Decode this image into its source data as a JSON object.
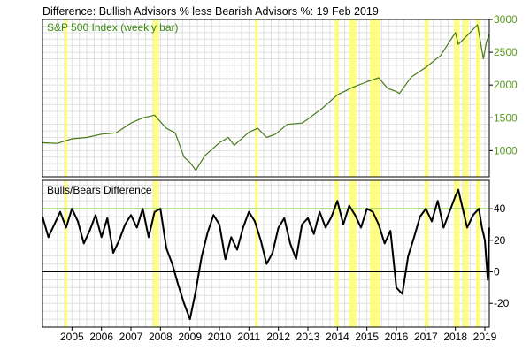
{
  "title": "Difference: Bullish Advisors % less Bearish Advisors %: 19 Feb 2019",
  "colors": {
    "background": "#ffffff",
    "grid": "#e0e0e0",
    "frame": "#000000",
    "price_line": "#4a7a1a",
    "price_label": "#3a8a10",
    "right_axis_price": "#5a9a20",
    "highlight": "#ffff66",
    "threshold_line": "#99cc55",
    "diff_line": "#000000"
  },
  "chart_data": [
    {
      "type": "line",
      "label": "S&P 500 Index (weekly bar)",
      "ylim": [
        600,
        3000
      ],
      "y_ticks": [
        1000,
        1500,
        2000,
        2500,
        3000
      ],
      "y_axis_side": "right",
      "xlim": [
        2004.0,
        2019.15
      ],
      "x": [
        2004.0,
        2004.5,
        2005.0,
        2005.5,
        2006.0,
        2006.5,
        2007.0,
        2007.4,
        2007.8,
        2008.2,
        2008.5,
        2008.8,
        2009.0,
        2009.2,
        2009.5,
        2010.0,
        2010.3,
        2010.5,
        2011.0,
        2011.3,
        2011.6,
        2011.9,
        2012.3,
        2012.8,
        2013.0,
        2013.5,
        2014.0,
        2014.5,
        2015.0,
        2015.4,
        2015.7,
        2016.0,
        2016.1,
        2016.5,
        2017.0,
        2017.5,
        2018.0,
        2018.1,
        2018.5,
        2018.75,
        2018.95,
        2019.05,
        2019.15
      ],
      "y": [
        1120,
        1110,
        1180,
        1200,
        1250,
        1270,
        1420,
        1500,
        1540,
        1340,
        1270,
        900,
        820,
        700,
        920,
        1120,
        1200,
        1080,
        1280,
        1340,
        1200,
        1250,
        1400,
        1420,
        1480,
        1650,
        1850,
        1960,
        2050,
        2110,
        1950,
        1900,
        1870,
        2120,
        2270,
        2450,
        2800,
        2620,
        2800,
        2920,
        2400,
        2650,
        2780
      ]
    },
    {
      "type": "line",
      "label": "Bulls/Bears Difference",
      "ylim": [
        -35,
        58
      ],
      "y_ticks": [
        -20,
        0,
        20,
        40
      ],
      "y_axis_side": "right",
      "threshold": 40,
      "zero_line": 0,
      "xlim": [
        2004.0,
        2019.15
      ],
      "x": [
        2004.0,
        2004.2,
        2004.4,
        2004.6,
        2004.8,
        2005.0,
        2005.2,
        2005.4,
        2005.6,
        2005.8,
        2006.0,
        2006.2,
        2006.4,
        2006.6,
        2006.8,
        2007.0,
        2007.2,
        2007.4,
        2007.6,
        2007.8,
        2008.0,
        2008.2,
        2008.4,
        2008.6,
        2008.8,
        2009.0,
        2009.2,
        2009.4,
        2009.6,
        2009.8,
        2010.0,
        2010.2,
        2010.4,
        2010.6,
        2010.8,
        2011.0,
        2011.2,
        2011.4,
        2011.6,
        2011.8,
        2012.0,
        2012.2,
        2012.4,
        2012.6,
        2012.8,
        2013.0,
        2013.2,
        2013.4,
        2013.6,
        2013.8,
        2014.0,
        2014.2,
        2014.4,
        2014.6,
        2014.8,
        2015.0,
        2015.2,
        2015.4,
        2015.6,
        2015.8,
        2016.0,
        2016.2,
        2016.4,
        2016.6,
        2016.8,
        2017.0,
        2017.2,
        2017.4,
        2017.6,
        2017.8,
        2018.0,
        2018.1,
        2018.2,
        2018.4,
        2018.6,
        2018.8,
        2018.9,
        2019.0,
        2019.1,
        2019.15
      ],
      "y": [
        35,
        22,
        30,
        38,
        28,
        40,
        32,
        18,
        26,
        36,
        22,
        34,
        12,
        20,
        30,
        36,
        28,
        40,
        22,
        38,
        40,
        15,
        5,
        -8,
        -20,
        -30,
        -12,
        10,
        25,
        36,
        30,
        8,
        22,
        14,
        28,
        38,
        32,
        20,
        5,
        12,
        28,
        34,
        18,
        8,
        30,
        34,
        24,
        38,
        28,
        35,
        45,
        30,
        42,
        36,
        28,
        40,
        38,
        30,
        18,
        26,
        -10,
        -14,
        10,
        22,
        35,
        40,
        32,
        45,
        28,
        38,
        48,
        52,
        44,
        28,
        36,
        40,
        28,
        20,
        -5,
        28
      ]
    }
  ],
  "highlight_bands": [
    [
      2004.75,
      2004.85
    ],
    [
      2007.75,
      2007.95
    ],
    [
      2011.2,
      2011.3
    ],
    [
      2013.9,
      2014.05
    ],
    [
      2014.4,
      2014.65
    ],
    [
      2015.1,
      2015.45
    ],
    [
      2016.95,
      2017.1
    ],
    [
      2017.95,
      2018.15
    ],
    [
      2018.25,
      2018.45
    ],
    [
      2018.7,
      2018.85
    ]
  ],
  "x_tick_labels": [
    "2005",
    "2006",
    "2007",
    "2008",
    "2009",
    "2010",
    "2011",
    "2012",
    "2013",
    "2014",
    "2015",
    "2016",
    "2017",
    "2018",
    "2019"
  ]
}
